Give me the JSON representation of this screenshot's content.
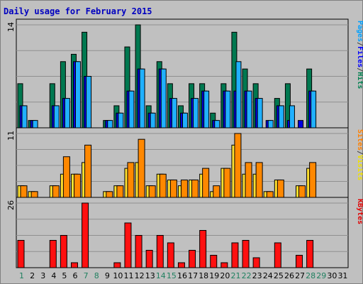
{
  "chart_data": {
    "type": "bar",
    "title": "Daily usage for February 2015",
    "categories": [
      "1",
      "2",
      "3",
      "4",
      "5",
      "6",
      "7",
      "8",
      "9",
      "10",
      "11",
      "12",
      "13",
      "14",
      "15",
      "16",
      "17",
      "18",
      "19",
      "20",
      "21",
      "22",
      "23",
      "24",
      "25",
      "26",
      "27",
      "28",
      "29",
      "30",
      "31"
    ],
    "weekend_days": [
      "1",
      "7",
      "8",
      "14",
      "15",
      "21",
      "22",
      "28",
      "29"
    ],
    "panels": [
      {
        "id": "hits",
        "ymax": 14,
        "ymax_label": "14",
        "legend": [
          {
            "label": "Pages",
            "color": "#00a0ff"
          },
          {
            "label": "/",
            "color": "#404040"
          },
          {
            "label": "Files",
            "color": "#0000ff"
          },
          {
            "label": "/",
            "color": "#404040"
          },
          {
            "label": "Hits",
            "color": "#008050"
          }
        ],
        "series": [
          {
            "name": "Hits",
            "color": "#007850",
            "values": [
              6,
              1,
              0,
              6,
              9,
              10,
              13,
              0,
              1,
              3,
              11,
              14,
              3,
              9,
              6,
              3,
              6,
              6,
              2,
              6,
              13,
              8,
              6,
              0,
              4,
              6,
              0,
              8,
              0,
              0,
              0
            ]
          },
          {
            "name": "Files",
            "color": "#0000e0",
            "values": [
              3,
              1,
              0,
              3,
              4,
              9,
              7,
              0,
              1,
              2,
              5,
              8,
              2,
              8,
              4,
              2,
              4,
              5,
              1,
              5,
              5,
              5,
              4,
              1,
              3,
              1,
              1,
              5,
              0,
              0,
              0
            ]
          },
          {
            "name": "Pages",
            "color": "#20b0ff",
            "values": [
              3,
              1,
              0,
              3,
              4,
              9,
              7,
              0,
              1,
              2,
              5,
              8,
              2,
              8,
              4,
              2,
              4,
              5,
              1,
              5,
              9,
              5,
              4,
              1,
              3,
              3,
              0,
              5,
              0,
              0,
              0
            ]
          }
        ]
      },
      {
        "id": "visits",
        "ymax": 11,
        "ymax_label": "11",
        "legend": [
          {
            "label": "Sites",
            "color": "#ff8000"
          },
          {
            "label": "/",
            "color": "#404040"
          },
          {
            "label": "Visits",
            "color": "#f0e000"
          }
        ],
        "series": [
          {
            "name": "Visits",
            "color": "#ffe030",
            "values": [
              2,
              1,
              0,
              2,
              4,
              4,
              6,
              0,
              1,
              2,
              5,
              6,
              2,
              4,
              3,
              2,
              3,
              4,
              1,
              5,
              9,
              4,
              4,
              1,
              3,
              0,
              2,
              5,
              0,
              0,
              0
            ]
          },
          {
            "name": "Sites",
            "color": "#ff8800",
            "values": [
              2,
              1,
              0,
              2,
              7,
              4,
              9,
              0,
              1,
              2,
              6,
              10,
              2,
              4,
              3,
              3,
              3,
              5,
              2,
              5,
              11,
              6,
              6,
              1,
              3,
              0,
              2,
              6,
              0,
              0,
              0
            ]
          }
        ]
      },
      {
        "id": "kbytes",
        "ymax": 26,
        "ymax_label": "26",
        "legend": [
          {
            "label": "KBytes",
            "color": "#e00000"
          }
        ],
        "series": [
          {
            "name": "KBytes",
            "color": "#ff1010",
            "values": [
              11,
              0,
              0,
              11,
              13,
              2,
              26,
              0,
              0,
              2,
              18,
              13,
              7,
              13,
              10,
              2,
              7,
              15,
              5,
              2,
              10,
              11,
              4,
              0,
              10,
              0,
              5,
              11,
              0,
              0,
              0
            ]
          }
        ]
      }
    ]
  }
}
